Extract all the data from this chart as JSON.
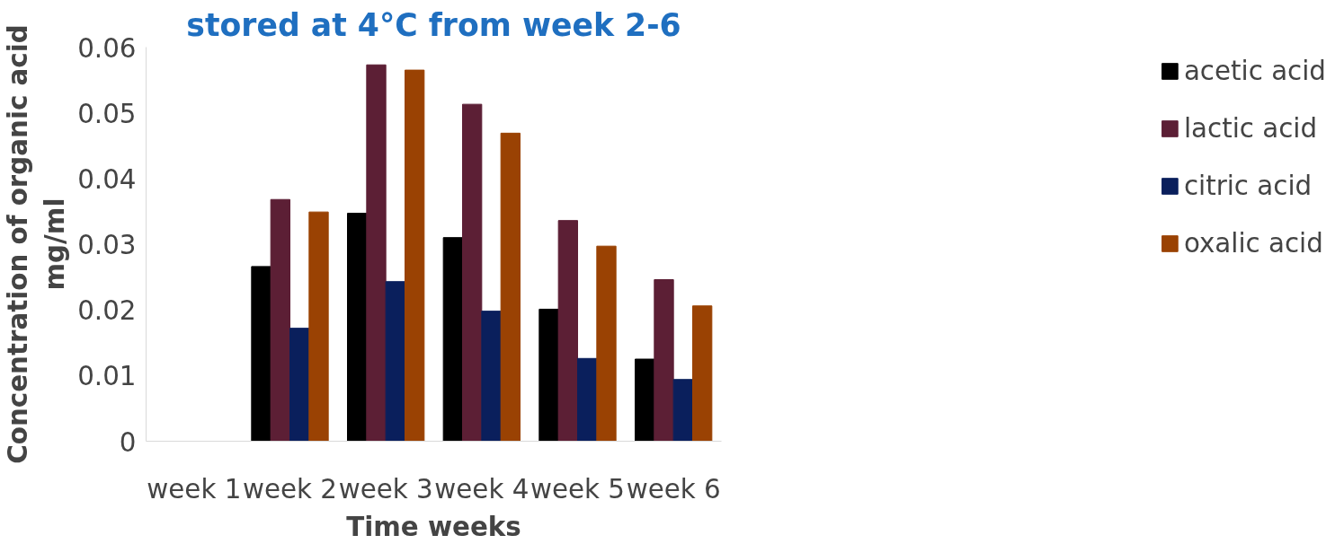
{
  "chart_data": {
    "type": "bar",
    "title": "stored at 4°C from week 2-6",
    "xlabel": "Time weeks",
    "ylabel": "Concentration of organic acid\nmg/ml",
    "categories": [
      "week 1",
      "week 2",
      "week 3",
      "week 4",
      "week 5",
      "week 6"
    ],
    "series": [
      {
        "name": "acetic acid",
        "color": "#000000",
        "values": [
          null,
          0.0266,
          0.0347,
          0.031,
          0.0201,
          0.0125
        ]
      },
      {
        "name": "lactic acid",
        "color": "#5c1f35",
        "values": [
          null,
          0.0368,
          0.0573,
          0.0513,
          0.0336,
          0.0246
        ]
      },
      {
        "name": "citric acid",
        "color": "#0a1f5c",
        "values": [
          null,
          0.0172,
          0.0243,
          0.0198,
          0.0126,
          0.0094
        ]
      },
      {
        "name": "oxalic acid",
        "color": "#9a4203",
        "values": [
          null,
          0.0349,
          0.0565,
          0.0469,
          0.0297,
          0.0206
        ]
      }
    ],
    "ylim": [
      0,
      0.06
    ],
    "yticks": [
      0,
      0.01,
      0.02,
      0.03,
      0.04,
      0.05,
      0.06
    ],
    "grid": false,
    "legend": "right"
  }
}
